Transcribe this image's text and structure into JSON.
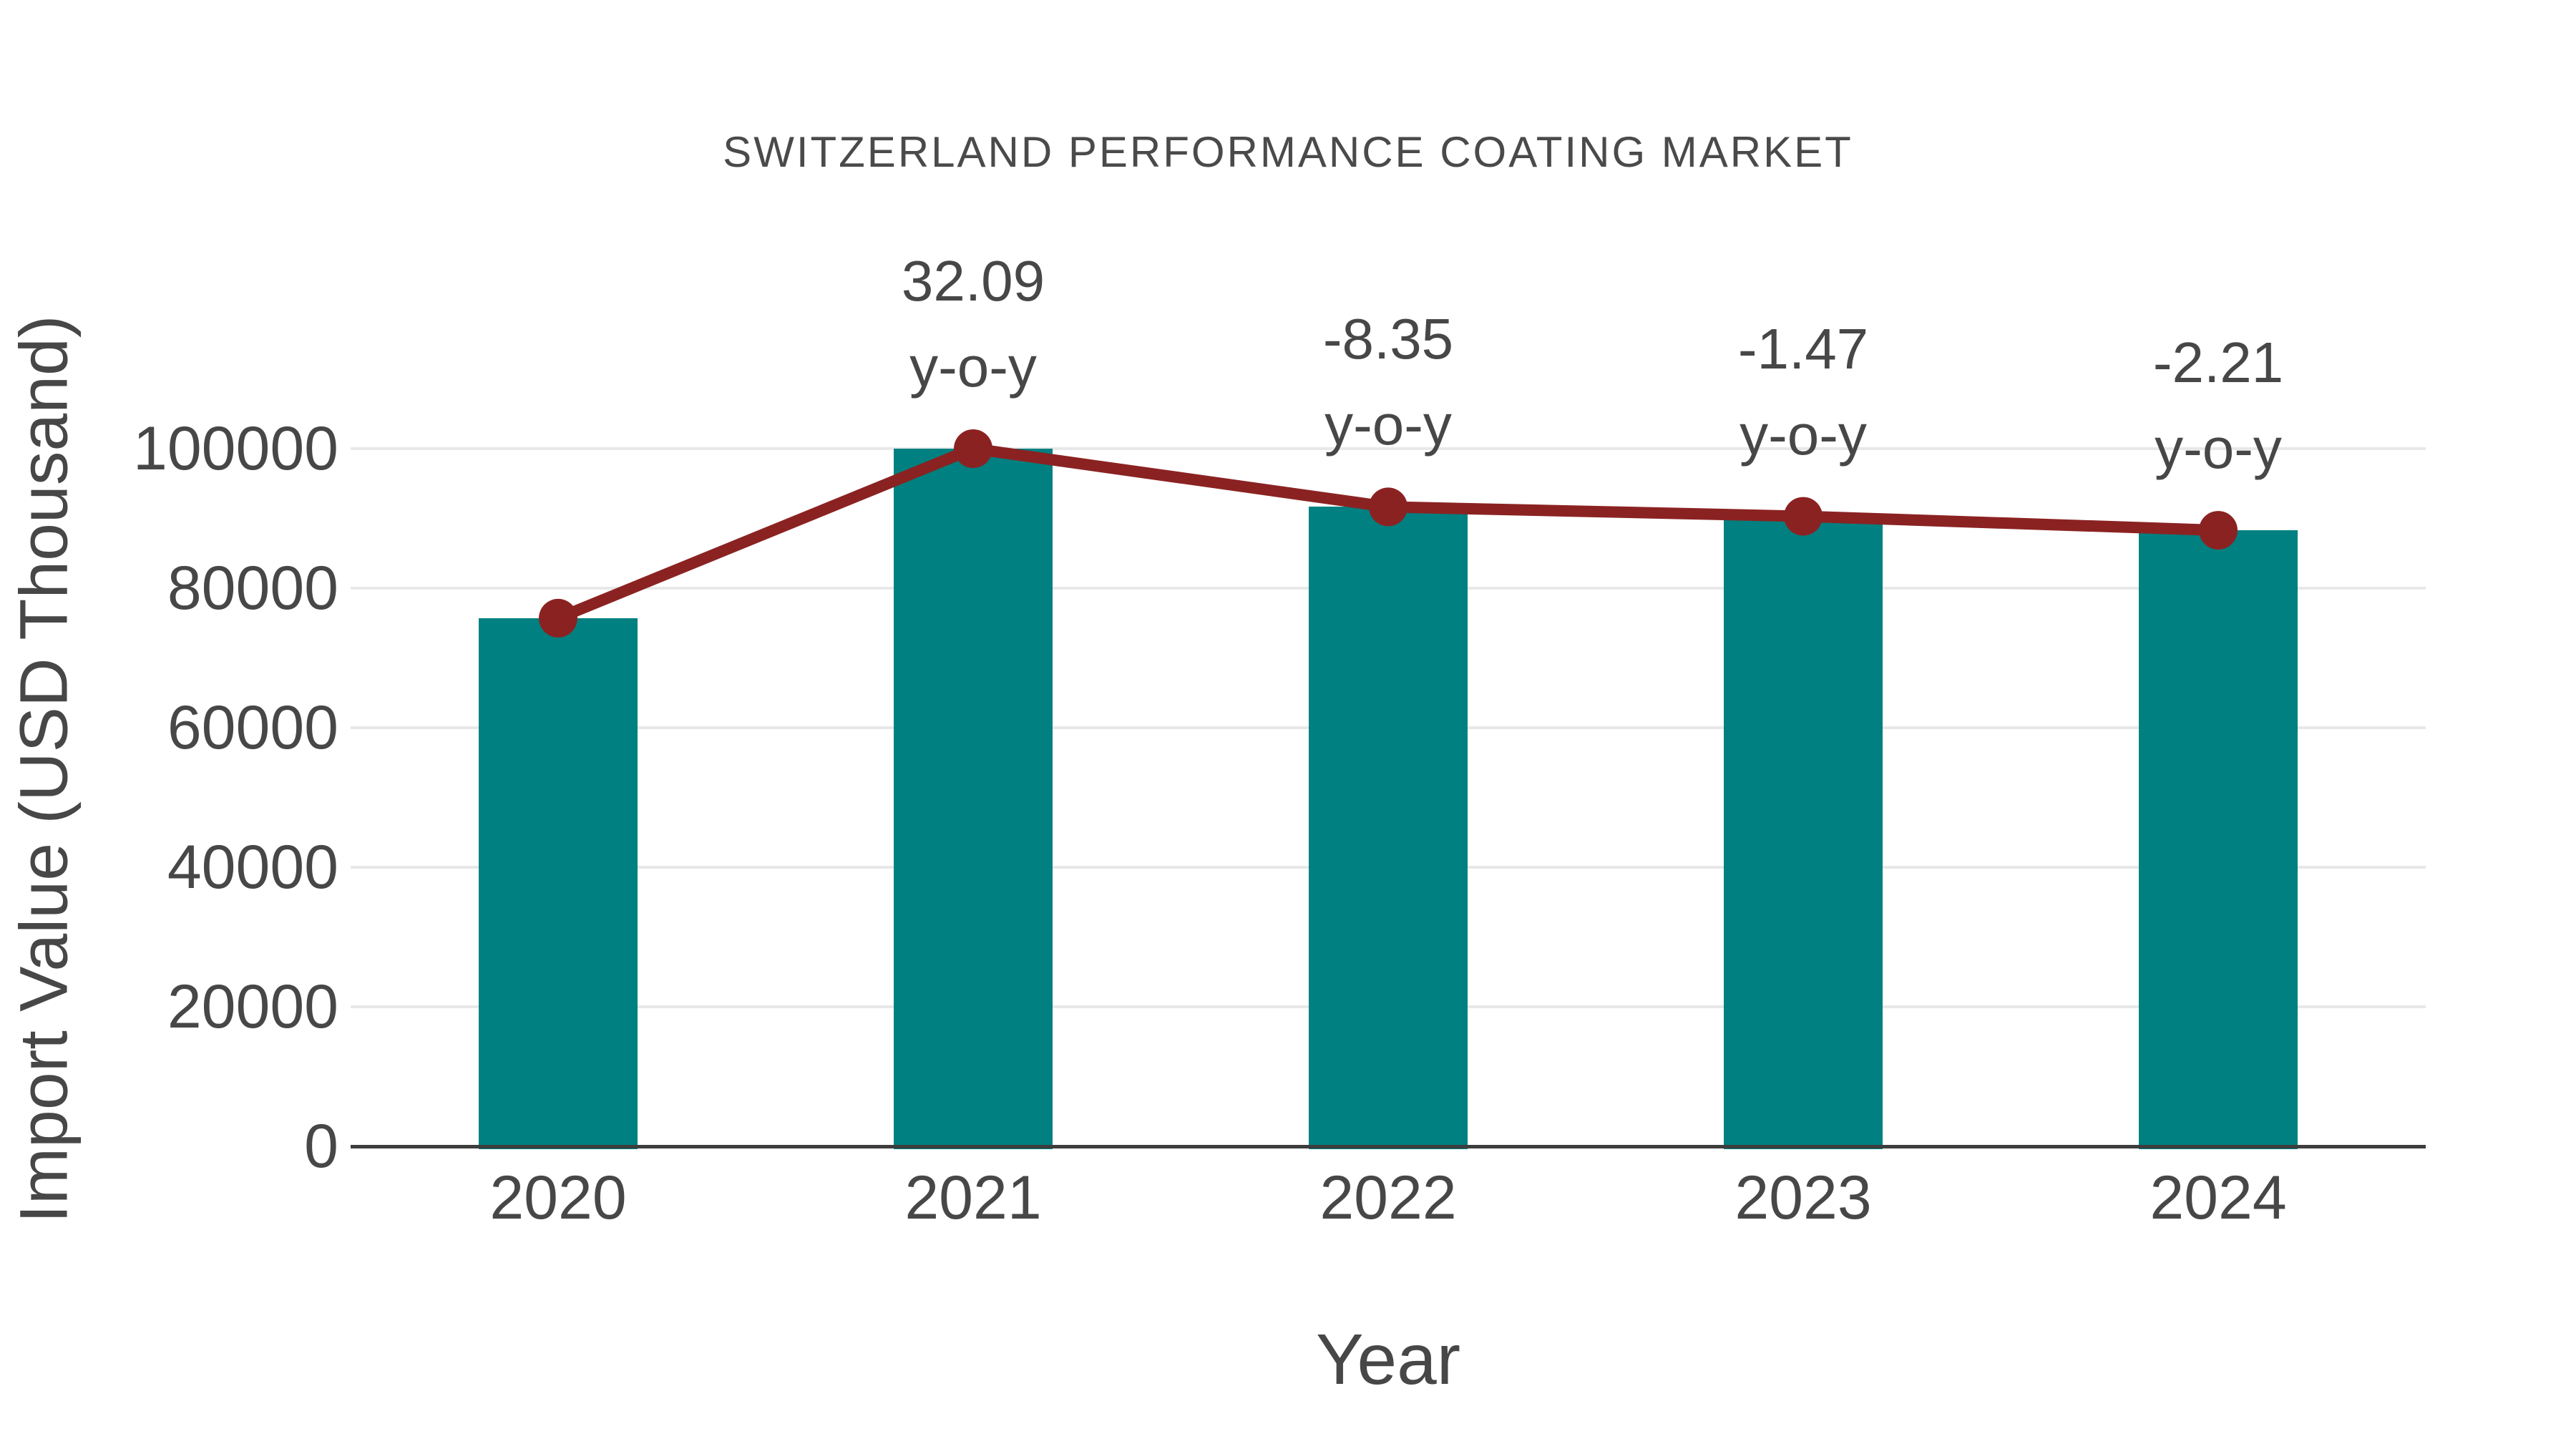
{
  "page": {
    "background": "#ffffff"
  },
  "chart_data": {
    "type": "bar",
    "overlay": "line",
    "title": "SWITZERLAND PERFORMANCE COATING MARKET",
    "xlabel": "Year",
    "ylabel": "Import Value (USD Thousand)",
    "categories": [
      "2020",
      "2021",
      "2022",
      "2023",
      "2024"
    ],
    "series": [
      {
        "name": "import-value-bars",
        "type": "bar",
        "values": [
          75700,
          100000,
          91650,
          90300,
          88300
        ],
        "color": "#008080"
      },
      {
        "name": "import-value-trend-line",
        "type": "line",
        "values": [
          75700,
          100000,
          91650,
          90300,
          88300
        ],
        "color": "#8B2222"
      }
    ],
    "annotations": {
      "suffix": "y-o-y",
      "values": [
        "",
        "32.09",
        "-8.35",
        "-1.47",
        "-2.21"
      ]
    },
    "yticks": [
      0,
      20000,
      40000,
      60000,
      80000,
      100000
    ],
    "ytick_labels": [
      "0",
      "20000",
      "40000",
      "60000",
      "80000",
      "100000"
    ],
    "ylim": [
      0,
      100000
    ],
    "grid": "horizontal",
    "legend": "none",
    "colors": {
      "bar": "#008080",
      "line": "#8B2222",
      "marker": "#8B2222",
      "gridline": "#e8e8e8",
      "axis_line": "#3d3d3d",
      "text": "#474747"
    }
  }
}
